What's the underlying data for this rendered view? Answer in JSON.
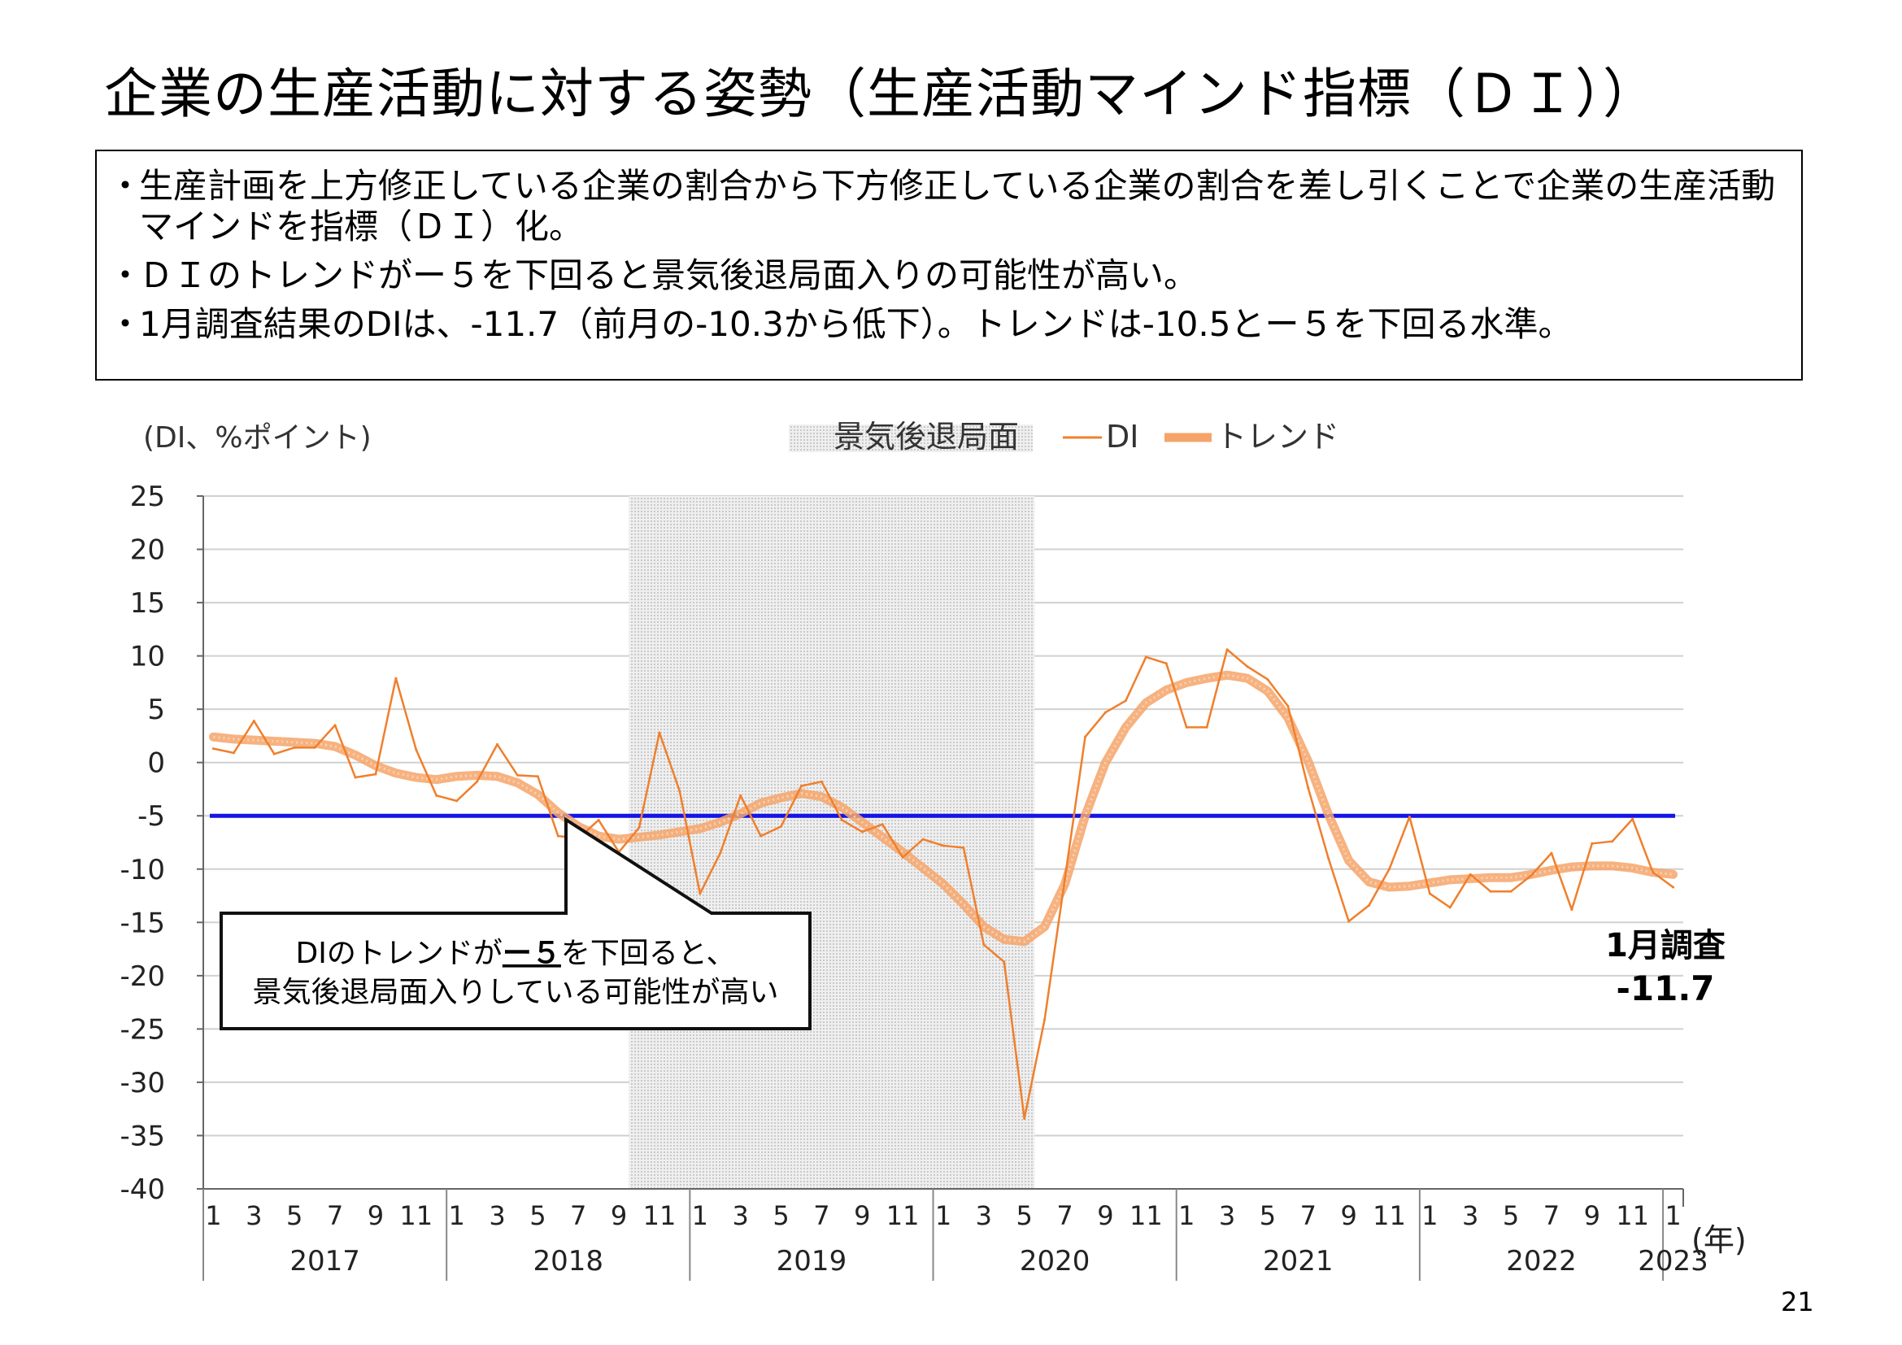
{
  "title": "企業の生産活動に対する姿勢（生産活動マインド指標（ＤＩ））",
  "bullets": [
    "生産計画を上方修正している企業の割合から下方修正している企業の割合を差し引くことで企業の生産活動マインドを指標（ＤＩ）化。",
    "ＤＩのトレンドがー５を下回ると景気後退局面入りの可能性が高い。",
    "1月調査結果のDIは、-11.7（前月の-10.3から低下）。トレンドは-10.5とー５を下回る水準。"
  ],
  "page_number": "21",
  "colors": {
    "di": "#f07f2c",
    "trend": "#f4a46a",
    "threshold": "#1414e6",
    "recession": "#d9d9d9"
  },
  "chart_data": {
    "type": "line",
    "y_unit_label": "(DI、%ポイント)",
    "x_unit_label": "(年)",
    "ylim": [
      -40,
      25
    ],
    "yticks": [
      25,
      20,
      15,
      10,
      5,
      0,
      -5,
      -10,
      -15,
      -20,
      -25,
      -30,
      -35,
      -40
    ],
    "month_tick_labels": [
      "1",
      "3",
      "5",
      "7",
      "9",
      "11"
    ],
    "years": [
      "2017",
      "2018",
      "2019",
      "2020",
      "2021",
      "2022",
      "2023"
    ],
    "legend": {
      "recession": "景気後退局面",
      "di": "DI",
      "trend": "トレンド"
    },
    "recession_period": {
      "start": "2018-10",
      "end": "2020-05"
    },
    "threshold": -5,
    "series": [
      {
        "name": "DI",
        "x": [
          "2017-01",
          "2017-02",
          "2017-03",
          "2017-04",
          "2017-05",
          "2017-06",
          "2017-07",
          "2017-08",
          "2017-09",
          "2017-10",
          "2017-11",
          "2017-12",
          "2018-01",
          "2018-02",
          "2018-03",
          "2018-04",
          "2018-05",
          "2018-06",
          "2018-07",
          "2018-08",
          "2018-09",
          "2018-10",
          "2018-11",
          "2018-12",
          "2019-01",
          "2019-02",
          "2019-03",
          "2019-04",
          "2019-05",
          "2019-06",
          "2019-07",
          "2019-08",
          "2019-09",
          "2019-10",
          "2019-11",
          "2019-12",
          "2020-01",
          "2020-02",
          "2020-03",
          "2020-04",
          "2020-05",
          "2020-06",
          "2020-07",
          "2020-08",
          "2020-09",
          "2020-10",
          "2020-11",
          "2020-12",
          "2021-01",
          "2021-02",
          "2021-03",
          "2021-04",
          "2021-05",
          "2021-06",
          "2021-07",
          "2021-08",
          "2021-09",
          "2021-10",
          "2021-11",
          "2021-12",
          "2022-01",
          "2022-02",
          "2022-03",
          "2022-04",
          "2022-05",
          "2022-06",
          "2022-07",
          "2022-08",
          "2022-09",
          "2022-10",
          "2022-11",
          "2022-12",
          "2023-01"
        ],
        "values": [
          1.3,
          0.9,
          3.9,
          0.8,
          1.4,
          1.4,
          3.5,
          -1.4,
          -1.1,
          7.9,
          1.2,
          -3.1,
          -3.6,
          -1.8,
          1.7,
          -1.2,
          -1.3,
          -6.9,
          -7.1,
          -5.4,
          -8.4,
          -6.1,
          2.8,
          -2.7,
          -12.3,
          -8.5,
          -3.1,
          -6.9,
          -6.0,
          -2.2,
          -1.8,
          -5.4,
          -6.5,
          -5.8,
          -8.9,
          -7.2,
          -7.8,
          -8.0,
          -17.1,
          -18.7,
          -33.4,
          -24.1,
          -10.9,
          2.4,
          4.7,
          5.8,
          9.9,
          9.3,
          3.3,
          3.3,
          10.6,
          9.0,
          7.8,
          5.3,
          -2.4,
          -9.0,
          -14.9,
          -13.4,
          -10.0,
          -5.1,
          -12.3,
          -13.6,
          -10.5,
          -12.1,
          -12.1,
          -10.6,
          -8.5,
          -13.8,
          -7.6,
          -7.4,
          -5.3,
          -10.3,
          -11.7
        ]
      },
      {
        "name": "トレンド",
        "x": [
          "2017-01",
          "2017-02",
          "2017-03",
          "2017-04",
          "2017-05",
          "2017-06",
          "2017-07",
          "2017-08",
          "2017-09",
          "2017-10",
          "2017-11",
          "2017-12",
          "2018-01",
          "2018-02",
          "2018-03",
          "2018-04",
          "2018-05",
          "2018-06",
          "2018-07",
          "2018-08",
          "2018-09",
          "2018-10",
          "2018-11",
          "2018-12",
          "2019-01",
          "2019-02",
          "2019-03",
          "2019-04",
          "2019-05",
          "2019-06",
          "2019-07",
          "2019-08",
          "2019-09",
          "2019-10",
          "2019-11",
          "2019-12",
          "2020-01",
          "2020-02",
          "2020-03",
          "2020-04",
          "2020-05",
          "2020-06",
          "2020-07",
          "2020-08",
          "2020-09",
          "2020-10",
          "2020-11",
          "2020-12",
          "2021-01",
          "2021-02",
          "2021-03",
          "2021-04",
          "2021-05",
          "2021-06",
          "2021-07",
          "2021-08",
          "2021-09",
          "2021-10",
          "2021-11",
          "2021-12",
          "2022-01",
          "2022-02",
          "2022-03",
          "2022-04",
          "2022-05",
          "2022-06",
          "2022-07",
          "2022-08",
          "2022-09",
          "2022-10",
          "2022-11",
          "2022-12",
          "2023-01"
        ],
        "values": [
          2.4,
          2.2,
          2.1,
          2.0,
          1.9,
          1.8,
          1.5,
          0.7,
          -0.3,
          -1.0,
          -1.4,
          -1.6,
          -1.3,
          -1.2,
          -1.3,
          -1.9,
          -3.0,
          -4.7,
          -6.0,
          -6.9,
          -7.2,
          -7.0,
          -6.8,
          -6.5,
          -6.2,
          -5.6,
          -4.8,
          -3.8,
          -3.3,
          -2.9,
          -3.2,
          -4.2,
          -5.6,
          -7.0,
          -8.4,
          -9.9,
          -11.4,
          -13.3,
          -15.4,
          -16.6,
          -16.8,
          -15.4,
          -11.4,
          -5.0,
          0.0,
          3.3,
          5.6,
          6.8,
          7.5,
          7.9,
          8.2,
          7.9,
          6.7,
          4.2,
          0.1,
          -4.9,
          -9.2,
          -11.2,
          -11.7,
          -11.6,
          -11.3,
          -11.0,
          -10.9,
          -10.8,
          -10.8,
          -10.5,
          -10.1,
          -9.8,
          -9.7,
          -9.7,
          -9.9,
          -10.3,
          -10.5
        ]
      }
    ],
    "callout": {
      "text_line1_pre": "DIのトレンドが",
      "text_line1_emph": "ー５",
      "text_line1_post": "を下回ると、",
      "text_line2": "景気後退局面入りしている可能性が高い"
    },
    "latest_label": {
      "line1": "1月調査",
      "line2": "-11.7"
    }
  }
}
